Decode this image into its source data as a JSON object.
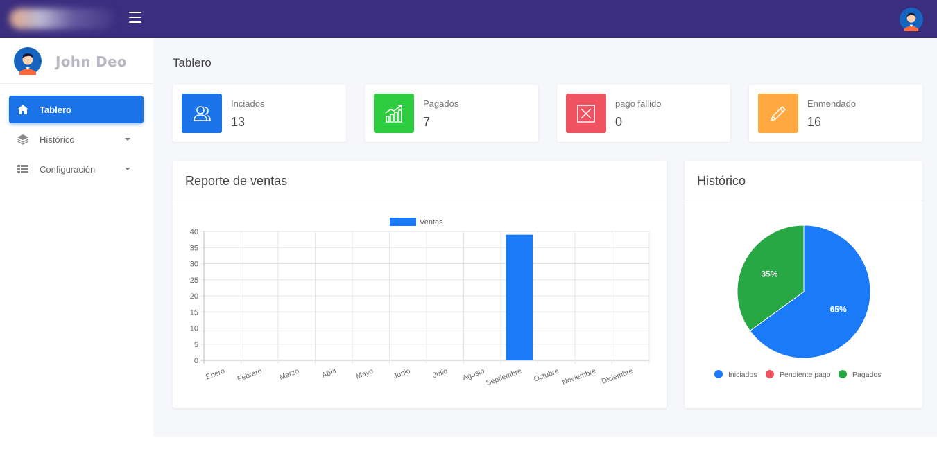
{
  "header": {
    "menu_icon": "hamburger-icon",
    "avatar_icon": "user-avatar-icon"
  },
  "sidebar": {
    "user_name": "John Deo",
    "items": [
      {
        "label": "Tablero",
        "icon": "home-icon",
        "active": true
      },
      {
        "label": "Histórico",
        "icon": "layers-icon",
        "active": false
      },
      {
        "label": "Configuración",
        "icon": "list-icon",
        "active": false
      }
    ]
  },
  "main": {
    "title": "Tablero",
    "stats": [
      {
        "label": "Inciados",
        "value": "13",
        "icon": "users-icon",
        "color": "#1a73e8"
      },
      {
        "label": "Pagados",
        "value": "7",
        "icon": "chart-growth-icon",
        "color": "#2ecc40"
      },
      {
        "label": "pago fallido",
        "value": "0",
        "icon": "close-box-icon",
        "color": "#ef5361"
      },
      {
        "label": "Enmendado",
        "value": "16",
        "icon": "pencil-icon",
        "color": "#ffa940"
      }
    ],
    "sales_panel": {
      "title": "Reporte de ventas"
    },
    "history_panel": {
      "title": "Histórico"
    }
  },
  "chart_data": [
    {
      "type": "bar",
      "title": "",
      "categories": [
        "Enero",
        "Febrero",
        "Marzo",
        "Abril",
        "Mayo",
        "Junio",
        "Julio",
        "Agosto",
        "Septiembre",
        "Octubre",
        "Noviembre",
        "Diciembre"
      ],
      "series": [
        {
          "name": "Ventas",
          "values": [
            0,
            0,
            0,
            0,
            0,
            0,
            0,
            0,
            39,
            0,
            0,
            0
          ],
          "color": "#1a7af8"
        }
      ],
      "ylim": [
        0,
        40
      ],
      "yticks": [
        0,
        5,
        10,
        15,
        20,
        25,
        30,
        35,
        40
      ],
      "grid": true,
      "legend": "top-center"
    },
    {
      "type": "pie",
      "labels": [
        "Iniciados",
        "Pendiente pago",
        "Pagados"
      ],
      "values": [
        65,
        0,
        35
      ],
      "display_labels": [
        "65%",
        "",
        "35%"
      ],
      "colors": [
        "#1a7af8",
        "#ef5361",
        "#28a745"
      ],
      "legend": "bottom"
    }
  ]
}
